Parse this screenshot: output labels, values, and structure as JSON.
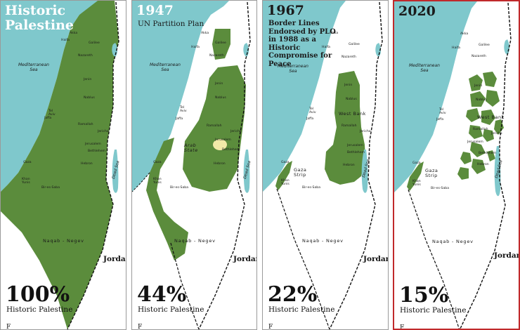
{
  "colors": {
    "sea": "#7fc8cc",
    "land_held": "#5b8c3c",
    "background": "#ffffff",
    "highlight_border": "#c0292b"
  },
  "common": {
    "sea_name": "Mediterranean Sea",
    "dead_sea": "Dead Sea",
    "jordan": "Jordan",
    "negev": "Naqab - Negev",
    "places": {
      "akka": "Akka",
      "haifa": "Haifa",
      "galilee": "Galilee",
      "nazareth": "Nazareth",
      "jenin": "Jenin",
      "nablus": "Nablus",
      "tel_aviv": "Tel Aviv",
      "jaffa": "Jaffa",
      "ramallah": "Ramallah",
      "jericho": "Jericho",
      "jerusalem": "Jerusalem",
      "bethlehem": "Bethlehem",
      "hebron": "Hebron",
      "gaza": "Gaza",
      "khan_yunis": "Khan Yunis",
      "bir_es_saba": "Bir-es-Saba"
    }
  },
  "panels": [
    {
      "title": "Historic Palestine",
      "subtitle": "",
      "percent": "100%",
      "percent_label": "Historic Palestine",
      "footer_fragment": "F"
    },
    {
      "title": "1947",
      "subtitle": "UN Partition Plan",
      "percent": "44%",
      "percent_label": "Historic Palestine",
      "footer_fragment": "F",
      "region_label": "Arab State"
    },
    {
      "title": "1967",
      "subtitle": "Border Lines Endorsed by PLO in 1988 as a Historic Compromise for Peace",
      "percent": "22%",
      "percent_label": "Historic Palestine",
      "footer_fragment": "F",
      "region_west_bank": "West Bank",
      "region_gaza": "Gaza Strip"
    },
    {
      "title": "2020",
      "subtitle": "",
      "percent": "15%",
      "percent_label": "Historic Palestine",
      "footer_fragment": "F",
      "region_west_bank": "West Bank",
      "region_gaza": "Gaza Strip"
    }
  ]
}
